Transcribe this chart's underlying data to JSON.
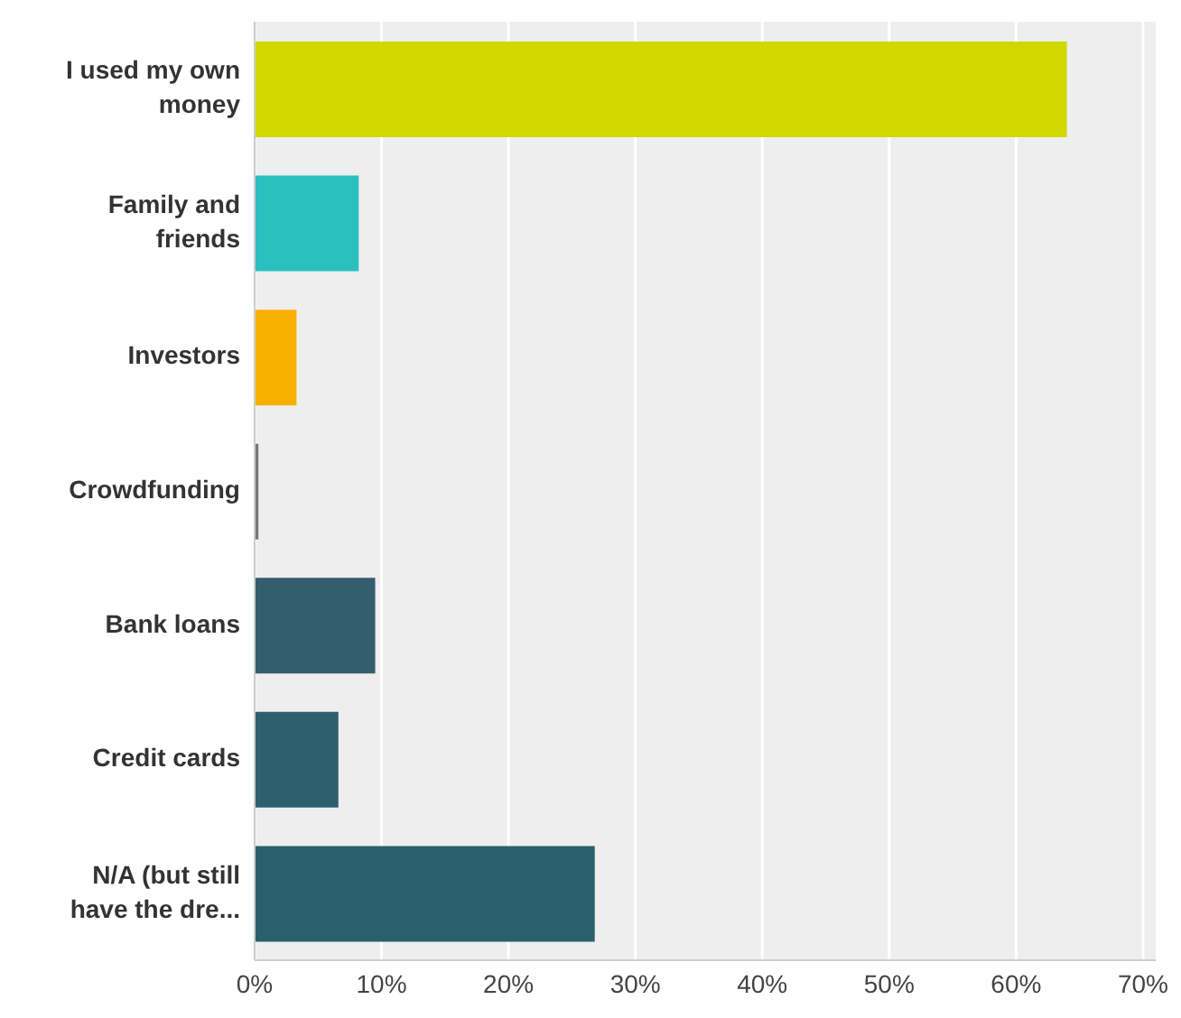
{
  "chart_data": {
    "type": "bar",
    "orientation": "horizontal",
    "categories": [
      "I used my own money",
      "Family and friends",
      "Investors",
      "Crowdfunding",
      "Bank loans",
      "Credit cards",
      "N/A (but still have the dre..."
    ],
    "values": [
      64.0,
      8.2,
      3.3,
      0.3,
      9.5,
      6.6,
      26.8
    ],
    "colors": [
      "#d0d800",
      "#2bbfc0",
      "#f8b000",
      "#777777",
      "#345d6e",
      "#2e5f6e",
      "#2c5f6d"
    ],
    "xlim": [
      0,
      71
    ],
    "xticks": [
      {
        "value": 0,
        "label": "0%"
      },
      {
        "value": 10,
        "label": "10%"
      },
      {
        "value": 20,
        "label": "20%"
      },
      {
        "value": 30,
        "label": "30%"
      },
      {
        "value": 40,
        "label": "40%"
      },
      {
        "value": 50,
        "label": "50%"
      },
      {
        "value": 60,
        "label": "60%"
      },
      {
        "value": 70,
        "label": "70%"
      }
    ],
    "grid": "x"
  }
}
